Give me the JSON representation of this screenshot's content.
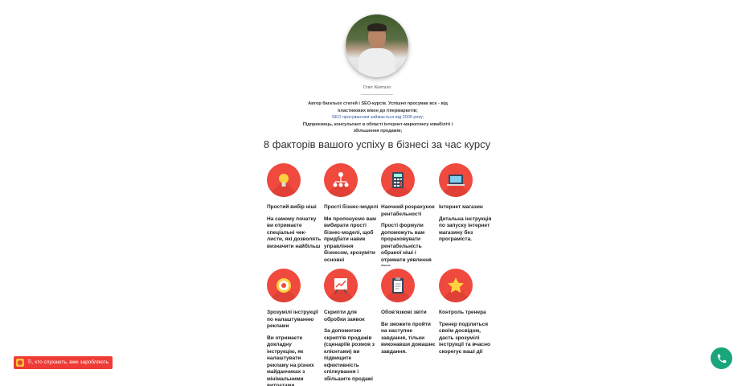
{
  "profile": {
    "name": "Олег Ковтало",
    "bio": [
      "Автор багатьох статей і SEO-курсів. Успішно просував все - від пластикових вікон до гіпермаркетів;",
      "SEO просуванням займається від 2009 року;",
      "Підприємець, консультант в області інтернет-маркетингу ювабіліті і збільшення продажів;"
    ]
  },
  "heading": "8 факторів вашого успіху в бізнесі за час курсу",
  "accent": "#f0493e",
  "features": [
    {
      "icon": "lightbulb-icon",
      "title": "Простий вибір ніші",
      "text": "На самому початку ви отримаєте спеціальні чек-листи, які дозволять визначити найбільш"
    },
    {
      "icon": "org-chart-icon",
      "title": "Прості бізнес-моделі",
      "text": "Ми пропонуємо вам вибирати прості бізнес-моделі, щоб придбати навик управління бізнесом, зрозуміти основні"
    },
    {
      "icon": "calculator-icon",
      "title": "Наочний розрахунок рентабельності",
      "text": "Прості формули допоможуть вам прораховувати рентабельність обраної ніші і отримати уявлення про"
    },
    {
      "icon": "laptop-icon",
      "title": "Інтернет магазин",
      "text": "Детальна інструкція по запуску інтернет магазину без програміста."
    },
    {
      "icon": "target-icon",
      "title": "Зрозумілі інструкції по налаштуванню реклами",
      "text": "Ви отримаєте докладну інструкцію, як налаштувати рекламу на різних майданчиках з мінімальними витратами"
    },
    {
      "icon": "chart-board-icon",
      "title": "Скрипти для обробки заявок",
      "text": "За допомогою скриптів продажів (сценаріїв розмов з клієнтами) ви підвищите ефективність спілкування і збільшите продажі"
    },
    {
      "icon": "clipboard-icon",
      "title": "Обов'язкові звіти",
      "text": "Ви зможете пройти на наступне завдання, тільки виконавши домашнє завдання."
    },
    {
      "icon": "star-icon",
      "title": "Контроль тренера",
      "text": "Тренер поділиться своїм досвідом, дасть зрозумілі інструкції та вчасно скорегує ваші дії"
    }
  ],
  "promo": {
    "label": "Ті, хто слухають, вже заробляють"
  },
  "phone": {
    "icon": "phone-icon",
    "color": "#1aa57a"
  }
}
